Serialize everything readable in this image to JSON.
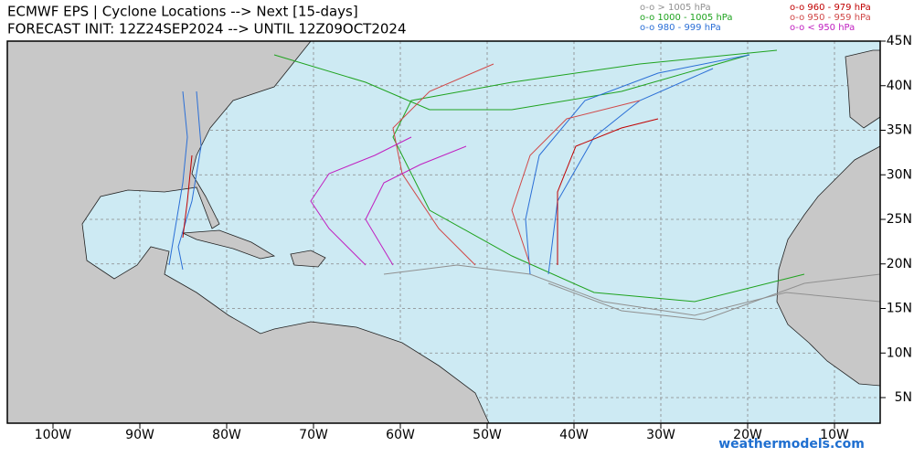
{
  "header": {
    "title_line1": "ECMWF EPS | Cyclone Locations --> Next [15-days]",
    "title_line2": "FORECAST INIT: 12Z24SEP2024 --> UNTIL 12Z09OCT2024"
  },
  "legend": [
    {
      "label": "o-o > 1005 hPa",
      "color": "#909090"
    },
    {
      "label": "o-o 1000 - 1005 hPa",
      "color": "#1fa31f"
    },
    {
      "label": "o-o 980 - 999 hPa",
      "color": "#2b6fd6"
    },
    {
      "label": "o-o 960 - 979 hPa",
      "color": "#c00000"
    },
    {
      "label": "o-o 950 - 959 hPa",
      "color": "#d04848"
    },
    {
      "label": "o-o < 950 hPa",
      "color": "#c020c0"
    }
  ],
  "lat_labels": [
    "45N",
    "40N",
    "35N",
    "30N",
    "25N",
    "20N",
    "15N",
    "10N",
    "5N"
  ],
  "lon_labels": [
    "100W",
    "90W",
    "80W",
    "70W",
    "60W",
    "50W",
    "40W",
    "30W",
    "20W",
    "10W"
  ],
  "watermark": "weathermodels.com"
}
